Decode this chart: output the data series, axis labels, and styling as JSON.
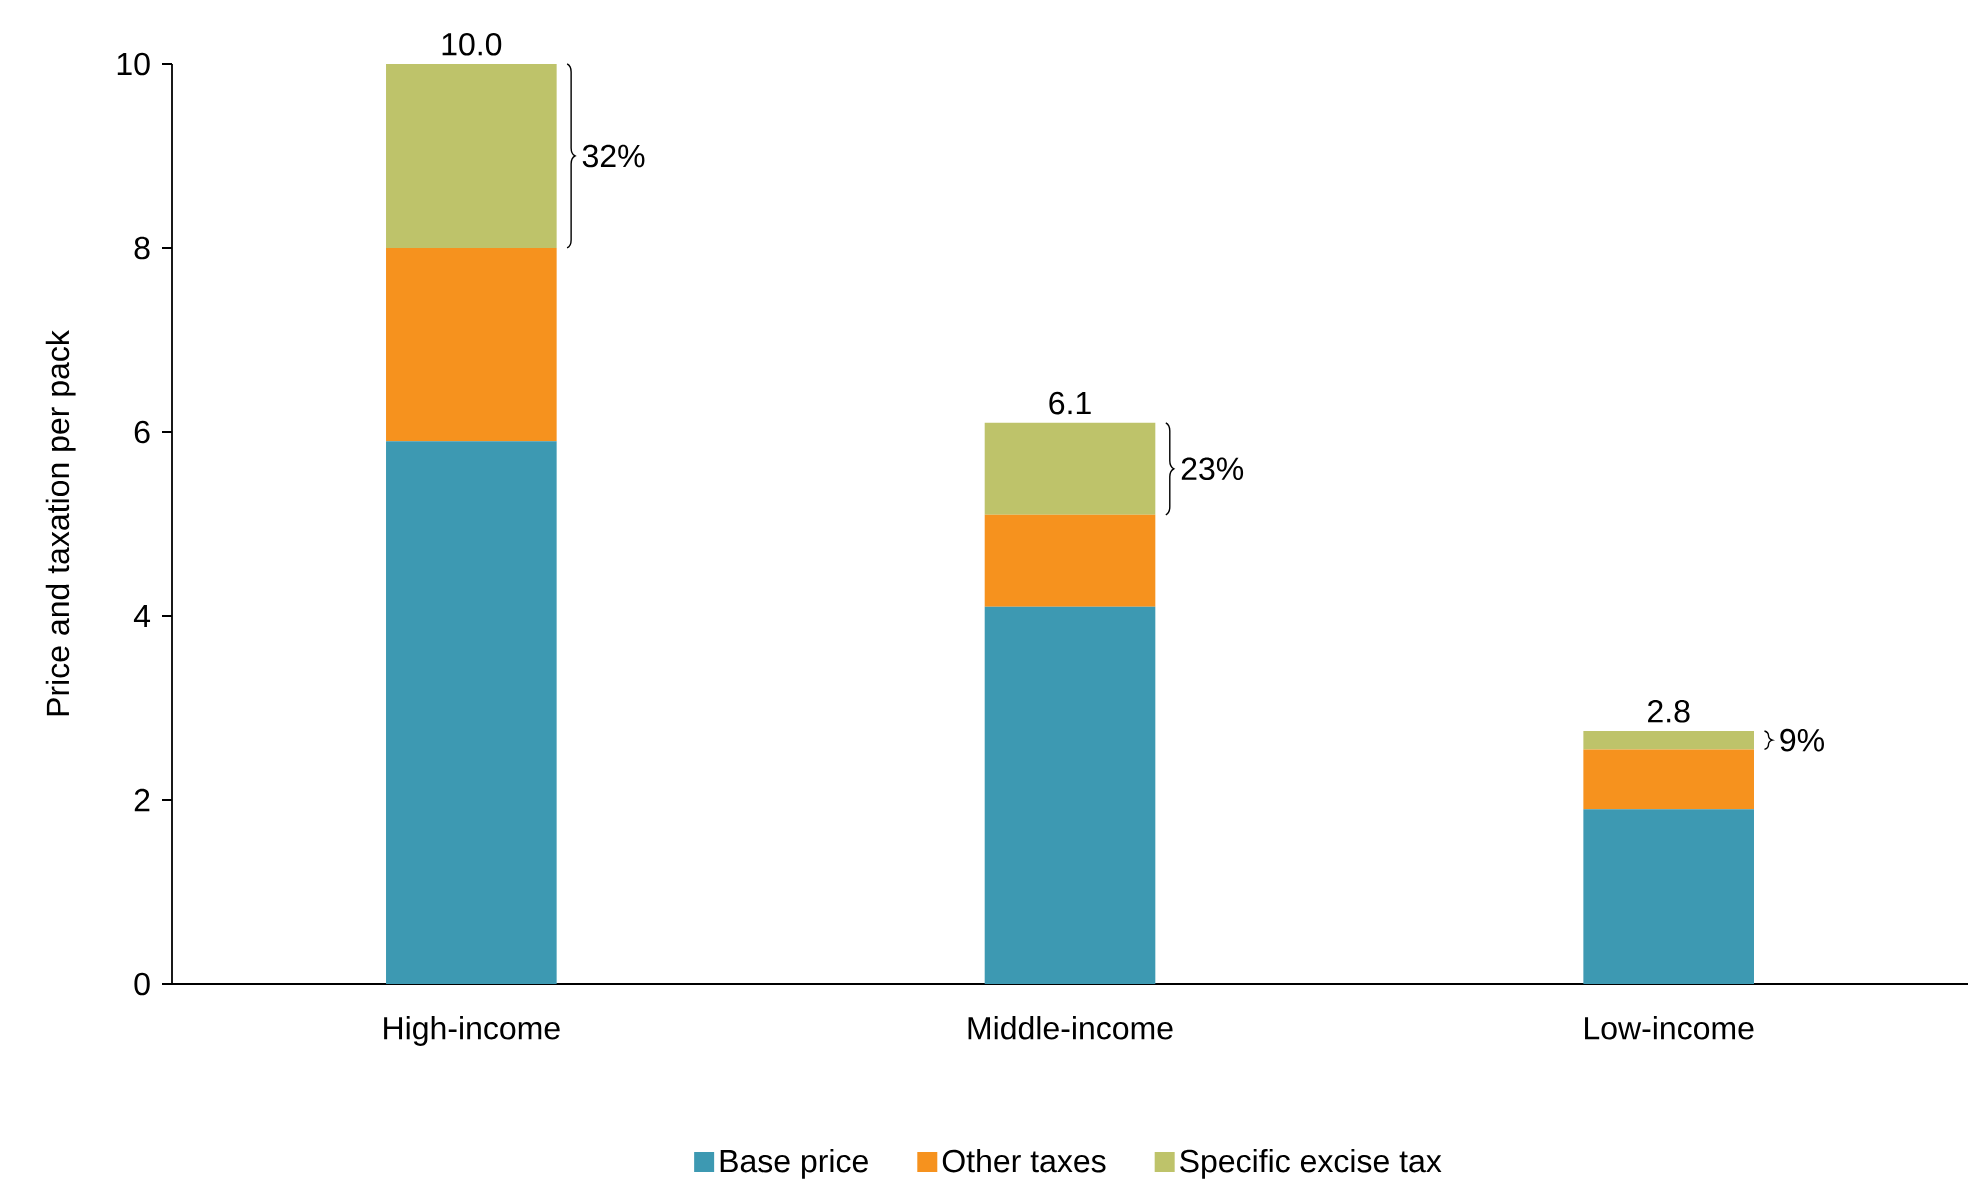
{
  "chart_data": {
    "type": "bar",
    "stacked": true,
    "ylabel": "Price and taxation per pack",
    "categories": [
      "High-income",
      "Middle-income",
      "Low-income"
    ],
    "series": [
      {
        "name": "Base price",
        "color": "#3d99b2",
        "values": [
          5.9,
          4.1,
          1.9
        ]
      },
      {
        "name": "Other taxes",
        "color": "#f6921e",
        "values": [
          2.1,
          1.0,
          0.65
        ]
      },
      {
        "name": "Specific excise tax",
        "color": "#bec36a",
        "values": [
          2.0,
          1.0,
          0.2
        ]
      }
    ],
    "ylim": [
      0,
      10
    ],
    "yticks": [
      0,
      2,
      4,
      6,
      8,
      10
    ],
    "totals": [
      "10.0",
      "6.1",
      "2.8"
    ],
    "legend": "bottom",
    "annotations": [
      "32%",
      "23%",
      "9%"
    ]
  }
}
